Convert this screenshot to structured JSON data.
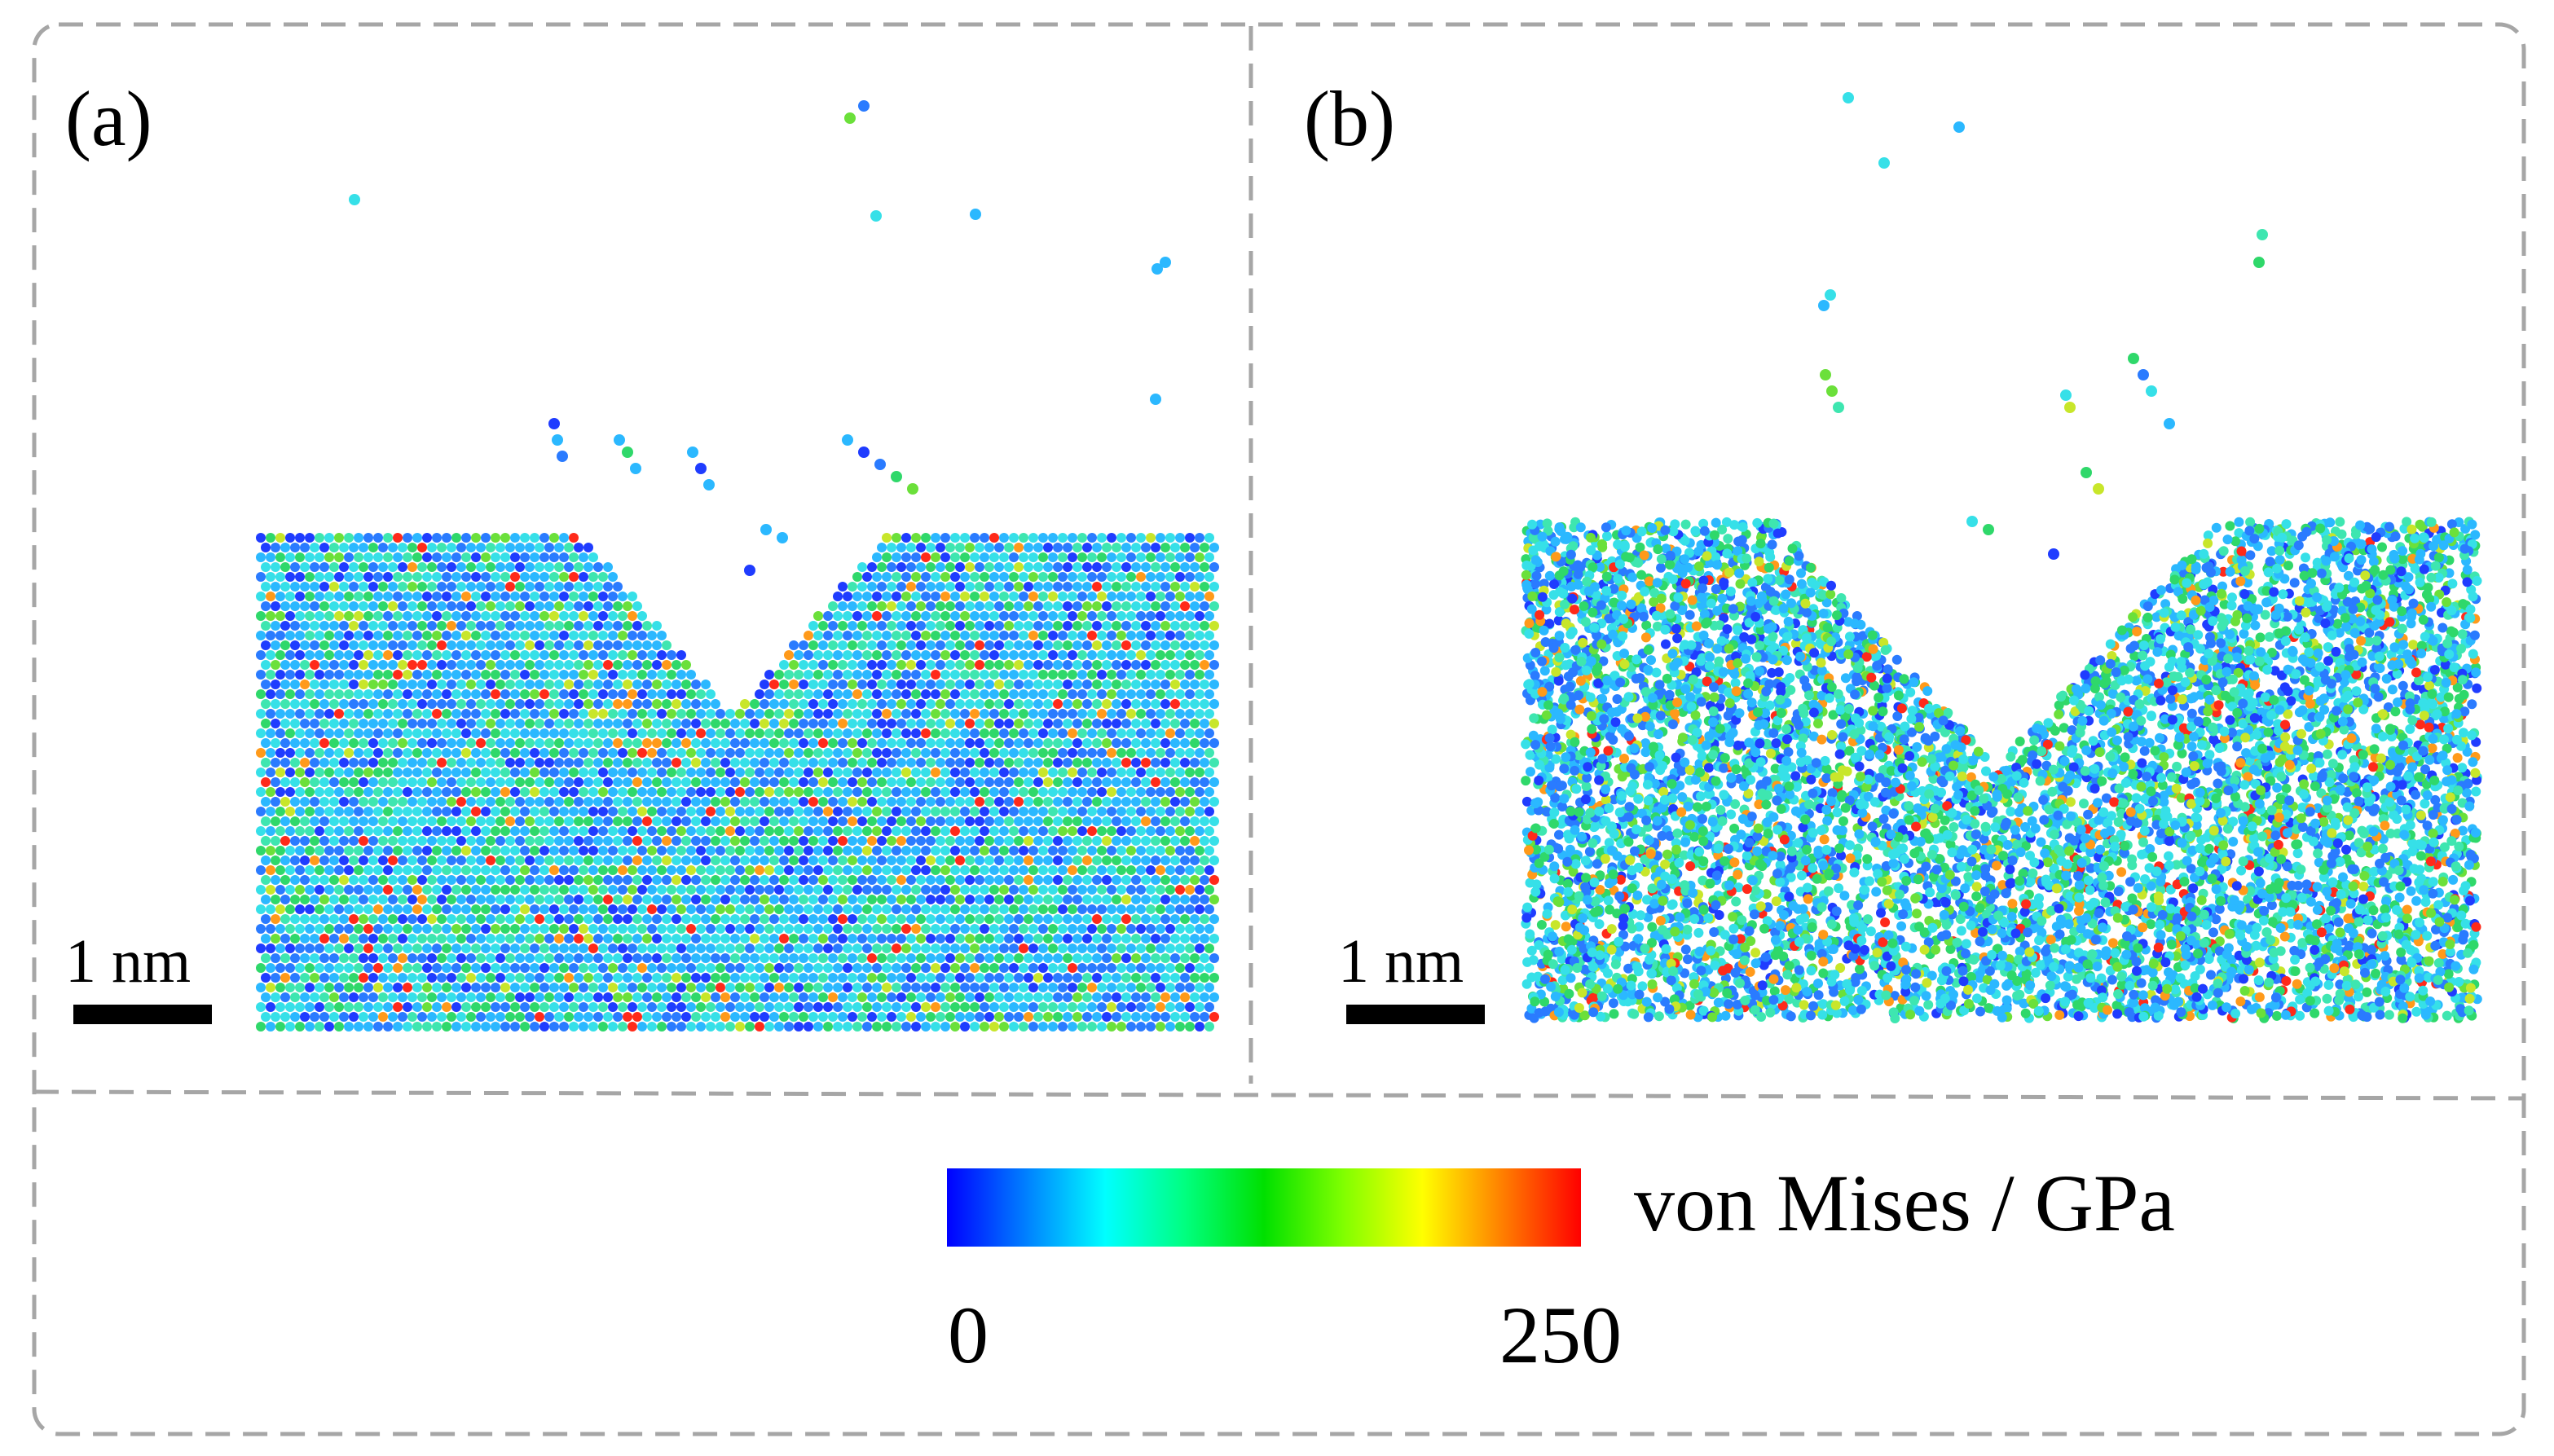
{
  "panels": [
    {
      "label": "(a)",
      "scale_bar_label": "1 nm"
    },
    {
      "label": "(b)",
      "scale_bar_label": "1 nm"
    }
  ],
  "colorbar": {
    "title": "von Mises / GPa",
    "min_label": "0",
    "max_label": "250",
    "min_value": 0,
    "max_value": 250,
    "colors": [
      "#0000ff",
      "#0080ff",
      "#00ffff",
      "#00ff80",
      "#00e000",
      "#80ff00",
      "#ffff00",
      "#ff8000",
      "#ff0000"
    ]
  },
  "colors": {
    "frame": "#a6a6a6",
    "text": "#000000"
  }
}
